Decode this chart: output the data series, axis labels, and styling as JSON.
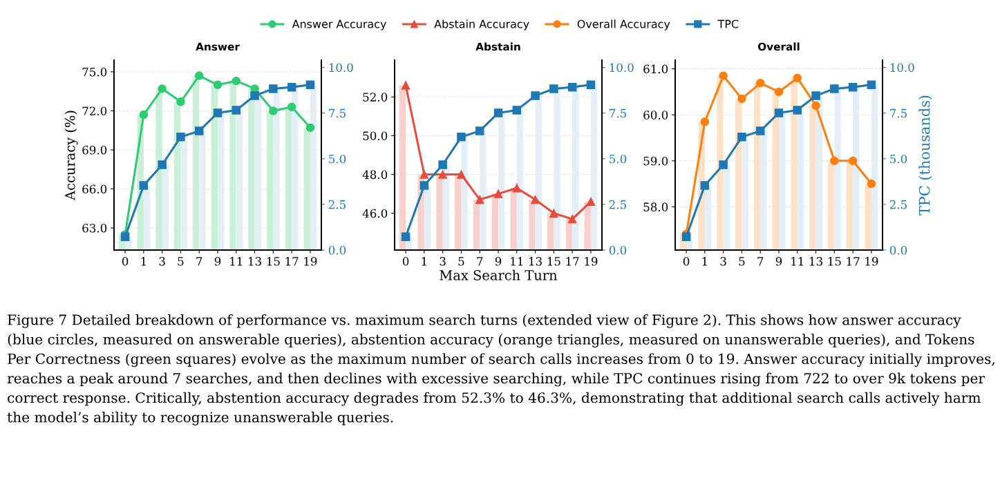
{
  "chart_data": [
    {
      "type": "line",
      "title": "Answer",
      "ylabel": "Accuracy (%)",
      "categories": [
        "0",
        "1",
        "3",
        "5",
        "7",
        "9",
        "11",
        "13",
        "15",
        "17",
        "19"
      ],
      "ylim": [
        61.3,
        75.9
      ],
      "yticks": [
        {
          "value": 63,
          "label": "63.0"
        },
        {
          "value": 66,
          "label": "66.0"
        },
        {
          "value": 69,
          "label": "69.0"
        },
        {
          "value": 72,
          "label": "72.0"
        },
        {
          "value": 75,
          "label": "75.0"
        }
      ],
      "y2lim": [
        0,
        10.4
      ],
      "y2ticks": [
        {
          "value": 0,
          "label": "0.0"
        },
        {
          "value": 2.5,
          "label": "2.5"
        },
        {
          "value": 5,
          "label": "5.0"
        },
        {
          "value": 7.5,
          "label": "7.5"
        },
        {
          "value": 10,
          "label": "10.0"
        }
      ],
      "grid": "y",
      "legend": "top",
      "annotations": [
        "Figure 7 Detailed breakdown of performance vs. maximum search turns (extended view of Figure 2). This shows how answer accuracy (blue circles, measured on answerable queries), abstention accuracy (orange triangles, measured on unanswerable queries), and Tokens Per Correctness (green squares) evolve as the maximum number of search calls increases from 0 to 19. Answer accuracy initially improves, reaches a peak around 7 searches, and then declines with excessive searching, while TPC continues rising from 722 to over 9k tokens per correct response. Critically, abstention accuracy degrades from 52.3% to 46.3%, demonstrating that additional search calls actively harm the model’s ability to recognize unanswerable queries."
      ],
      "series": [
        {
          "type": "bar",
          "color": "#c9efd7",
          "values": [
            62.5,
            71.7,
            73.7,
            72.7,
            74.7,
            74.0,
            74.3,
            73.7,
            72.0,
            72.3,
            70.7
          ]
        },
        {
          "type": "bar",
          "axis": "y2",
          "color": "#e3eef7",
          "values": [
            0.73,
            3.54,
            4.67,
            6.19,
            6.52,
            7.51,
            7.66,
            8.45,
            8.83,
            8.92,
            9.05
          ]
        },
        {
          "name": "Answer Accuracy",
          "color": "#2ecc71",
          "marker": "circle",
          "values": [
            62.5,
            71.7,
            73.7,
            72.7,
            74.7,
            74.0,
            74.3,
            73.7,
            72.0,
            72.3,
            70.7
          ]
        },
        {
          "name": "TPC",
          "axis": "y2",
          "color": "#1f77b4",
          "marker": "square",
          "values": [
            0.73,
            3.54,
            4.67,
            6.19,
            6.52,
            7.51,
            7.66,
            8.45,
            8.83,
            8.92,
            9.05
          ]
        }
      ]
    },
    {
      "type": "line",
      "title": "Abstain",
      "xlabel": "Max Search Turn",
      "categories": [
        "0",
        "1",
        "3",
        "5",
        "7",
        "9",
        "11",
        "13",
        "15",
        "17",
        "19"
      ],
      "ylim": [
        44.1,
        53.9
      ],
      "yticks": [
        {
          "value": 46,
          "label": "46.0"
        },
        {
          "value": 48,
          "label": "48.0"
        },
        {
          "value": 50,
          "label": "50.0"
        },
        {
          "value": 52,
          "label": "52.0"
        }
      ],
      "y2lim": [
        0,
        10.4
      ],
      "y2ticks": [
        {
          "value": 0,
          "label": "0.0"
        },
        {
          "value": 2.5,
          "label": "2.5"
        },
        {
          "value": 5,
          "label": "5.0"
        },
        {
          "value": 7.5,
          "label": "7.5"
        },
        {
          "value": 10,
          "label": "10.0"
        }
      ],
      "grid": "y",
      "legend": "top",
      "series": [
        {
          "type": "bar",
          "color": "#f8cfcb",
          "values": [
            52.6,
            48.0,
            48.0,
            48.0,
            46.7,
            47.0,
            47.3,
            46.7,
            46.0,
            45.7,
            46.6
          ]
        },
        {
          "type": "bar",
          "axis": "y2",
          "color": "#e3eef7",
          "values": [
            0.73,
            3.54,
            4.67,
            6.19,
            6.52,
            7.51,
            7.66,
            8.45,
            8.83,
            8.92,
            9.05
          ]
        },
        {
          "name": "Abstain Accuracy",
          "color": "#e74c3c",
          "marker": "triangle",
          "values": [
            52.6,
            48.0,
            48.0,
            48.0,
            46.7,
            47.0,
            47.3,
            46.7,
            46.0,
            45.7,
            46.6
          ]
        },
        {
          "axis": "y2",
          "color": "#1f77b4",
          "marker": "square",
          "values": [
            0.73,
            3.54,
            4.67,
            6.19,
            6.52,
            7.51,
            7.66,
            8.45,
            8.83,
            8.92,
            9.05
          ]
        }
      ]
    },
    {
      "type": "line",
      "title": "Overall",
      "y2label": "TPC (thousands)",
      "categories": [
        "0",
        "1",
        "3",
        "5",
        "7",
        "9",
        "11",
        "13",
        "15",
        "17",
        "19"
      ],
      "ylim": [
        57.06,
        61.19
      ],
      "yticks": [
        {
          "value": 58,
          "label": "58.0"
        },
        {
          "value": 59,
          "label": "59.0"
        },
        {
          "value": 60,
          "label": "60.0"
        },
        {
          "value": 61,
          "label": "61.0"
        }
      ],
      "y2lim": [
        0,
        10.4
      ],
      "y2ticks": [
        {
          "value": 0,
          "label": "0.0"
        },
        {
          "value": 2.5,
          "label": "2.5"
        },
        {
          "value": 5,
          "label": "5.0"
        },
        {
          "value": 7.5,
          "label": "7.5"
        },
        {
          "value": 10,
          "label": "10.0"
        }
      ],
      "grid": "y",
      "legend": "top",
      "series": [
        {
          "type": "bar",
          "color": "#fde1c7",
          "values": [
            57.41,
            59.85,
            60.85,
            60.35,
            60.69,
            60.5,
            60.8,
            60.2,
            59.0,
            59.0,
            58.5
          ]
        },
        {
          "type": "bar",
          "axis": "y2",
          "color": "#e3eef7",
          "values": [
            0.73,
            3.54,
            4.67,
            6.19,
            6.52,
            7.51,
            7.66,
            8.45,
            8.83,
            8.92,
            9.05
          ]
        },
        {
          "name": "Overall Accuracy",
          "color": "#ff7f0e",
          "marker": "circle",
          "values": [
            57.41,
            59.85,
            60.85,
            60.35,
            60.69,
            60.5,
            60.8,
            60.2,
            59.0,
            59.0,
            58.5
          ]
        },
        {
          "axis": "y2",
          "color": "#1f77b4",
          "marker": "square",
          "values": [
            0.73,
            3.54,
            4.67,
            6.19,
            6.52,
            7.51,
            7.66,
            8.45,
            8.83,
            8.92,
            9.05
          ]
        }
      ]
    }
  ]
}
